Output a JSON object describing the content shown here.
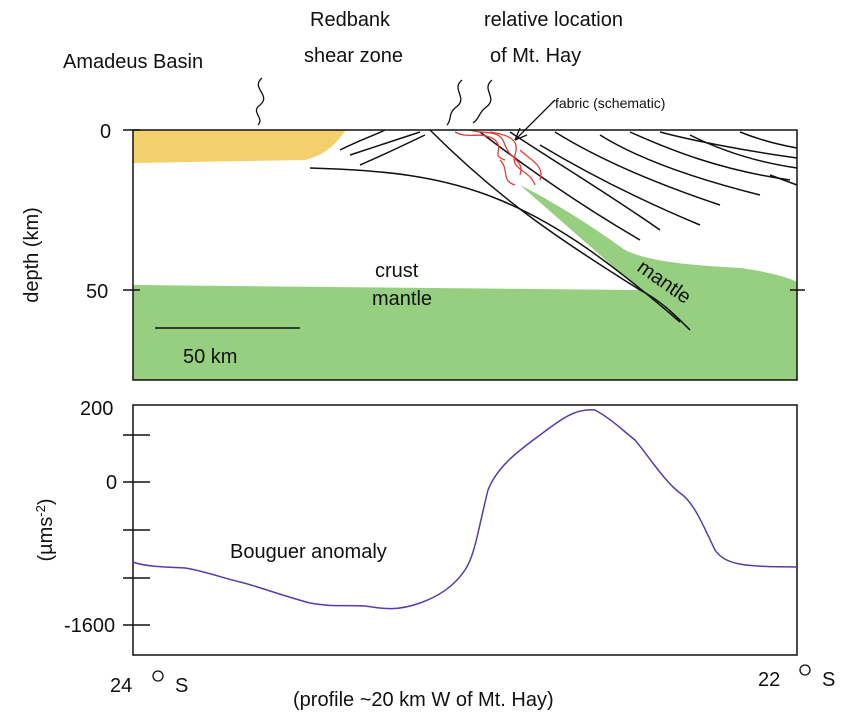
{
  "labels": {
    "basin": "Amadeus Basin",
    "shear_zone": [
      "Redbank",
      "shear zone"
    ],
    "location": [
      "relative location",
      "of Mt. Hay"
    ],
    "fabric": "fabric (schematic)",
    "crust": "crust",
    "mantle_left": "mantle",
    "mantle_right": "mantle",
    "scale": "50 km",
    "bouguer": "Bouguer anomaly",
    "profile": "(profile ~20 km W of Mt. Hay)"
  },
  "depth_axis": {
    "title": "depth (km)",
    "ticks": [
      "0",
      "50"
    ]
  },
  "gravity_axis": {
    "title": "(µms",
    "title_sup": "-2",
    "title_end": ")",
    "ticks": [
      "200",
      "0",
      "-1600"
    ]
  },
  "latitude": {
    "left": "24",
    "left_hemisphere": "S",
    "right": "22",
    "right_hemisphere": "S"
  }
}
